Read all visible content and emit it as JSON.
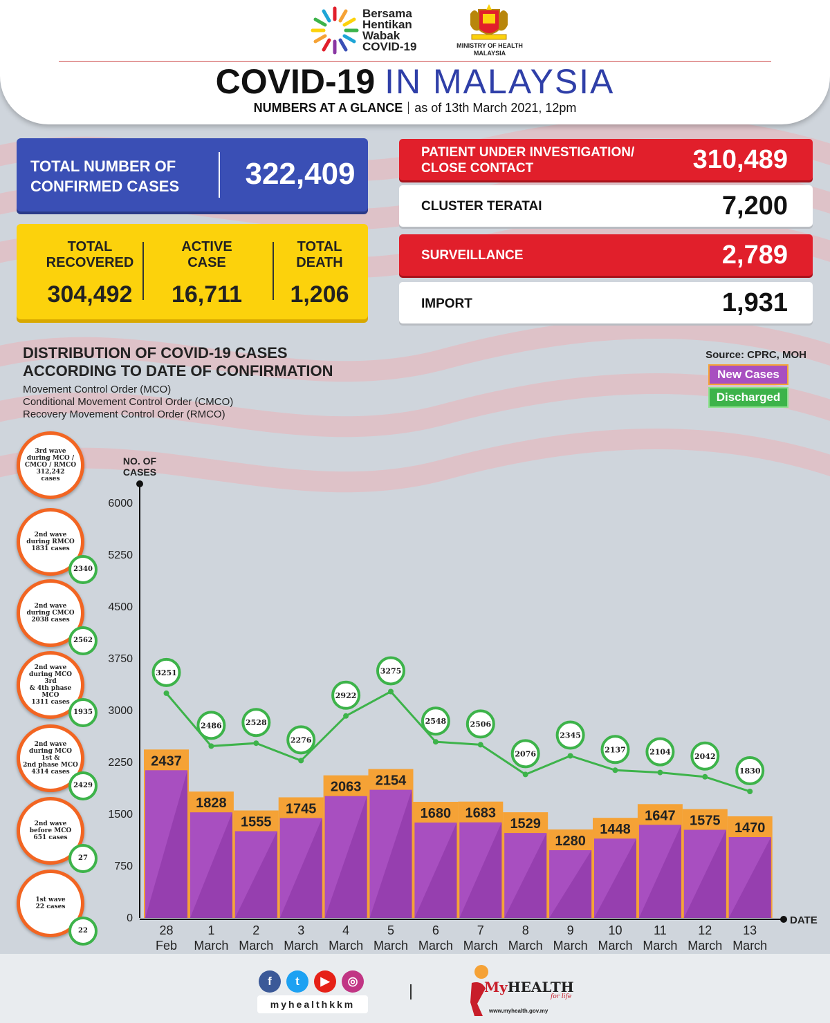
{
  "header": {
    "campaign_lines": [
      "Bersama",
      "Hentikan",
      "Wabak",
      "COVID-19"
    ],
    "ministry_lines": [
      "MINISTRY OF HEALTH",
      "MALAYSIA"
    ],
    "title_bold": "COVID-19",
    "title_rest": "IN MALAYSIA",
    "subtitle_bold": "NUMBERS AT A GLANCE",
    "subtitle_date": "as of 13th March 2021, 12pm"
  },
  "totals": {
    "confirmed_label_lines": [
      "TOTAL NUMBER OF",
      "CONFIRMED CASES"
    ],
    "confirmed_value": "322,409",
    "recovered_label_lines": [
      "TOTAL",
      "RECOVERED"
    ],
    "recovered_value": "304,492",
    "active_label_lines": [
      "ACTIVE",
      "CASE"
    ],
    "active_value": "16,711",
    "death_label_lines": [
      "TOTAL",
      "DEATH"
    ],
    "death_value": "1,206"
  },
  "sources": [
    {
      "label_lines": [
        "PATIENT UNDER INVESTIGATION/",
        "CLOSE CONTACT"
      ],
      "value": "310,489"
    },
    {
      "label_lines": [
        "CLUSTER TERATAI"
      ],
      "value": "7,200"
    },
    {
      "label_lines": [
        "SURVEILLANCE"
      ],
      "value": "2,789"
    },
    {
      "label_lines": [
        "IMPORT"
      ],
      "value": "1,931"
    }
  ],
  "distribution": {
    "title_lines": [
      "DISTRIBUTION OF COVID-19 CASES",
      "ACCORDING TO DATE OF CONFIRMATION"
    ],
    "notes": [
      "Movement Control Order (MCO)",
      "Conditional Movement Control Order (CMCO)",
      "Recovery Movement Control Order (RMCO)"
    ],
    "source": "Source: CPRC, MOH"
  },
  "waves": [
    {
      "lines": [
        "3rd wave",
        "during MCO /",
        "CMCO / RMCO",
        "312,242",
        "cases"
      ],
      "discharged": ""
    },
    {
      "lines": [
        "2nd wave",
        "during RMCO",
        "1831 cases"
      ],
      "discharged": "2340"
    },
    {
      "lines": [
        "2nd wave",
        "during CMCO",
        "2038 cases"
      ],
      "discharged": "2562"
    },
    {
      "lines": [
        "2nd wave",
        "during MCO 3rd",
        "& 4th phase MCO",
        "1311 cases"
      ],
      "discharged": "1935"
    },
    {
      "lines": [
        "2nd wave",
        "during MCO 1st &",
        "2nd phase MCO",
        "4314 cases"
      ],
      "discharged": "2429"
    },
    {
      "lines": [
        "2nd wave",
        "before MCO",
        "651 cases"
      ],
      "discharged": "27"
    },
    {
      "lines": [
        "1st wave",
        "22 cases"
      ],
      "discharged": "22"
    }
  ],
  "colors": {
    "new_cases": "#a84fc0",
    "new_cases_dark": "#8a36a3",
    "new_cases_label": "#f5a236",
    "discharged": "#3db34a",
    "blue_box": "#3a4fb5",
    "yellow_box": "#fcd20c",
    "red_box": "#e11f2b",
    "wave_ring": "#f26522"
  },
  "chart_data": {
    "type": "bar",
    "ylabel_lines": [
      "NO. OF",
      "CASES"
    ],
    "xlabel": "DATE",
    "ylim": [
      0,
      6000
    ],
    "yticks": [
      0,
      750,
      1500,
      2250,
      3000,
      3750,
      4500,
      5250,
      6000
    ],
    "categories": [
      {
        "day": "28",
        "month": "Feb"
      },
      {
        "day": "1",
        "month": "March"
      },
      {
        "day": "2",
        "month": "March"
      },
      {
        "day": "3",
        "month": "March"
      },
      {
        "day": "4",
        "month": "March"
      },
      {
        "day": "5",
        "month": "March"
      },
      {
        "day": "6",
        "month": "March"
      },
      {
        "day": "7",
        "month": "March"
      },
      {
        "day": "8",
        "month": "March"
      },
      {
        "day": "9",
        "month": "March"
      },
      {
        "day": "10",
        "month": "March"
      },
      {
        "day": "11",
        "month": "March"
      },
      {
        "day": "12",
        "month": "March"
      },
      {
        "day": "13",
        "month": "March"
      }
    ],
    "legend": [
      "New Cases",
      "Discharged"
    ],
    "series": [
      {
        "name": "New Cases",
        "type": "bar",
        "values": [
          2437,
          1828,
          1555,
          1745,
          2063,
          2154,
          1680,
          1683,
          1529,
          1280,
          1448,
          1647,
          1575,
          1470
        ]
      },
      {
        "name": "Discharged",
        "type": "line",
        "values": [
          3251,
          2486,
          2528,
          2276,
          2922,
          3275,
          2548,
          2506,
          2076,
          2345,
          2137,
          2104,
          2042,
          1830
        ]
      }
    ]
  },
  "footer": {
    "social_icons": [
      "facebook-icon",
      "twitter-icon",
      "youtube-icon",
      "instagram-icon"
    ],
    "handle": "myhealthkkm",
    "brand_my": "My",
    "brand_health": "HEALTH",
    "brand_tagline": "for life",
    "brand_url": "www.myhealth.gov.my"
  }
}
